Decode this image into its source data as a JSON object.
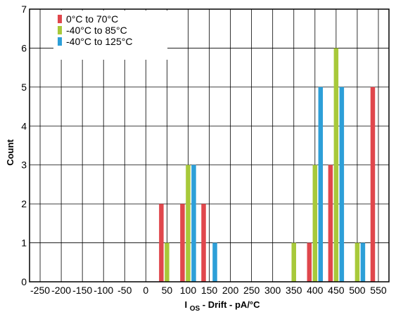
{
  "chart_data": {
    "type": "bar",
    "x": [
      -250,
      -200,
      -150,
      -100,
      -50,
      0,
      50,
      100,
      150,
      200,
      250,
      300,
      350,
      400,
      450,
      500,
      550
    ],
    "x_tick_labels": [
      "-250",
      "-200",
      "-150",
      "-100",
      "-50",
      "0",
      "50",
      "100",
      "150",
      "200",
      "250",
      "300",
      "350",
      "400",
      "450",
      "500",
      "550"
    ],
    "y_ticks": [
      0,
      1,
      2,
      3,
      4,
      5,
      6,
      7
    ],
    "y_tick_labels": [
      "0",
      "1",
      "2",
      "3",
      "4",
      "5",
      "6",
      "7"
    ],
    "xlim": [
      -275,
      575
    ],
    "ylim": [
      0,
      7
    ],
    "xlabel_main": "I",
    "xlabel_sub": "OS",
    "xlabel_rest": " - Drift - pA/°C",
    "ylabel": "Count",
    "grid": true,
    "legend_position": "top-left",
    "series": [
      {
        "name": "0°C to 70°C",
        "color": "#e0474c",
        "points": [
          {
            "x": 50,
            "y": 2
          },
          {
            "x": 100,
            "y": 2
          },
          {
            "x": 150,
            "y": 2
          },
          {
            "x": 400,
            "y": 1
          },
          {
            "x": 450,
            "y": 3
          },
          {
            "x": 550,
            "y": 5
          }
        ]
      },
      {
        "name": "-40°C to 85°C",
        "color": "#a8c93a",
        "points": [
          {
            "x": 50,
            "y": 1
          },
          {
            "x": 100,
            "y": 3
          },
          {
            "x": 350,
            "y": 1
          },
          {
            "x": 400,
            "y": 3
          },
          {
            "x": 450,
            "y": 6
          },
          {
            "x": 500,
            "y": 1
          }
        ]
      },
      {
        "name": "-40°C to 125°C",
        "color": "#2d9fd8",
        "points": [
          {
            "x": 100,
            "y": 3
          },
          {
            "x": 150,
            "y": 1
          },
          {
            "x": 400,
            "y": 5
          },
          {
            "x": 450,
            "y": 5
          },
          {
            "x": 500,
            "y": 1
          }
        ]
      }
    ]
  }
}
